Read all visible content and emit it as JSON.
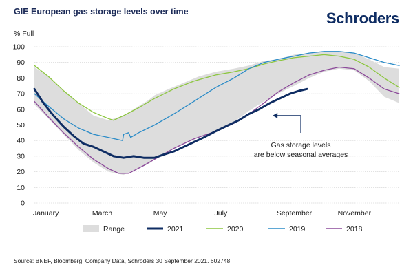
{
  "header": {
    "title": "GIE European gas storage levels over time",
    "logo": "Schroders"
  },
  "footer": {
    "source": "Source: BNEF, Bloomberg, Company Data, Schroders 30 September 2021. 602748."
  },
  "colors": {
    "range": "#dddddd",
    "s2021": "#0f2d63",
    "s2020": "#8cc63f",
    "s2019": "#2a8bc7",
    "s2018": "#8c4a9a"
  },
  "chart_data": {
    "type": "line",
    "title": "GIE European gas storage levels over time",
    "ylabel": "% Full",
    "xlabel": "",
    "ylim": [
      0,
      100
    ],
    "xlim": [
      1,
      365
    ],
    "y_ticks": [
      0,
      10,
      20,
      30,
      40,
      50,
      60,
      70,
      80,
      90,
      100
    ],
    "x_ticks": [
      {
        "label": "January",
        "day": 1
      },
      {
        "label": "March",
        "day": 60
      },
      {
        "label": "May",
        "day": 121
      },
      {
        "label": "July",
        "day": 182
      },
      {
        "label": "September",
        "day": 244
      },
      {
        "label": "November",
        "day": 305
      }
    ],
    "grid": true,
    "legend": [
      "Range",
      "2021",
      "2020",
      "2019",
      "2018"
    ],
    "annotation": {
      "text_line1": "Gas storage levels",
      "text_line2": "are below seasonal averages",
      "points_to_day": 236,
      "points_to_value": 56
    },
    "range": {
      "name": "Range",
      "days": [
        1,
        15,
        30,
        45,
        60,
        75,
        90,
        100,
        115,
        121,
        135,
        150,
        165,
        182,
        200,
        215,
        230,
        244,
        260,
        275,
        290,
        305,
        320,
        335,
        350,
        365
      ],
      "upper": [
        87,
        81,
        72,
        64,
        56,
        53,
        56,
        60,
        66,
        69,
        73,
        77,
        81,
        84,
        86,
        88,
        91,
        92,
        95,
        96,
        97,
        97,
        96,
        92,
        87,
        86
      ],
      "lower": [
        63,
        54,
        44,
        34,
        26,
        20,
        18,
        21,
        25,
        28,
        33,
        38,
        42,
        46,
        52,
        59,
        65,
        70,
        75,
        80,
        84,
        86,
        85,
        78,
        68,
        64
      ]
    },
    "series": [
      {
        "name": "2021",
        "days": [
          1,
          10,
          20,
          30,
          40,
          50,
          60,
          70,
          80,
          90,
          100,
          110,
          121,
          130,
          140,
          150,
          160,
          170,
          182,
          195,
          205,
          215,
          225,
          236,
          246,
          256,
          266,
          273
        ],
        "values": [
          73,
          64,
          56,
          49,
          43,
          38,
          36,
          33,
          30,
          29,
          30,
          29,
          29,
          31,
          33,
          36,
          39,
          42,
          46,
          50,
          53,
          57,
          60,
          64,
          67,
          70,
          72,
          73
        ]
      },
      {
        "name": "2020",
        "days": [
          1,
          15,
          30,
          45,
          60,
          75,
          80,
          90,
          105,
          121,
          140,
          160,
          182,
          200,
          215,
          230,
          244,
          260,
          275,
          290,
          305,
          320,
          335,
          350,
          365
        ],
        "values": [
          88,
          81,
          72,
          64,
          58,
          54,
          53,
          56,
          61,
          67,
          73,
          78,
          82,
          84,
          86,
          89,
          91,
          93,
          94,
          95,
          94,
          92,
          87,
          80,
          74
        ]
      },
      {
        "name": "2019",
        "days": [
          1,
          15,
          30,
          45,
          60,
          75,
          89,
          90,
          95,
          97,
          105,
          121,
          140,
          160,
          182,
          200,
          215,
          230,
          244,
          260,
          275,
          290,
          305,
          320,
          335,
          350,
          365
        ],
        "values": [
          70,
          62,
          54,
          48,
          44,
          42,
          40,
          44,
          45,
          42,
          45,
          50,
          57,
          65,
          74,
          80,
          86,
          90,
          92,
          94,
          96,
          97,
          97,
          96,
          93,
          90,
          88
        ]
      },
      {
        "name": "2018",
        "days": [
          1,
          15,
          30,
          45,
          60,
          75,
          85,
          95,
          110,
          121,
          140,
          160,
          182,
          200,
          215,
          230,
          244,
          260,
          275,
          290,
          305,
          320,
          335,
          350,
          365
        ],
        "values": [
          65,
          55,
          45,
          36,
          28,
          22,
          19,
          19,
          24,
          28,
          35,
          41,
          46,
          51,
          57,
          64,
          71,
          77,
          82,
          85,
          87,
          86,
          80,
          73,
          70
        ]
      }
    ]
  }
}
